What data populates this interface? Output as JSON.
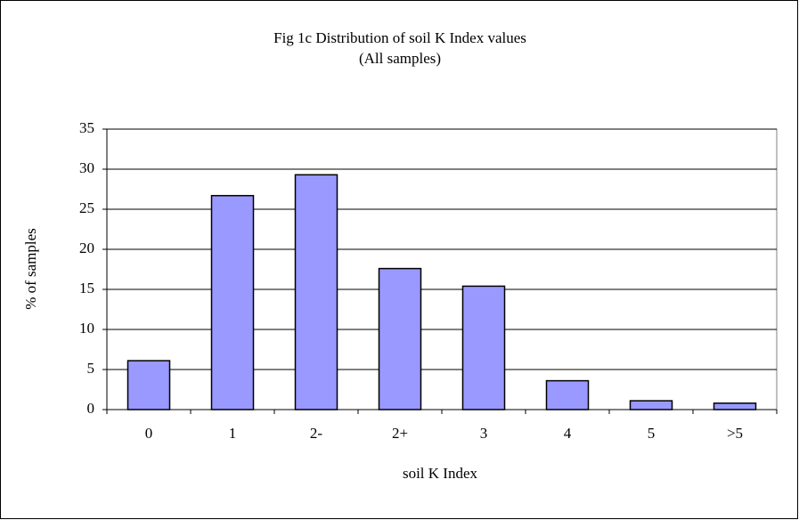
{
  "chart_data": {
    "type": "bar",
    "title": "Fig 1c Distribution of soil K Index values",
    "subtitle": "(All samples)",
    "x_label": "soil K Index",
    "y_label": "% of samples",
    "categories": [
      "0",
      "1",
      "2-",
      "2+",
      "3",
      "4",
      "5",
      ">5"
    ],
    "values": [
      6.1,
      26.7,
      29.3,
      17.6,
      15.4,
      3.6,
      1.1,
      0.8
    ],
    "color": "#9999ff",
    "ylim": [
      0,
      35
    ],
    "yticks": [
      0,
      5,
      10,
      15,
      20,
      25,
      30,
      35
    ],
    "grid": true
  }
}
